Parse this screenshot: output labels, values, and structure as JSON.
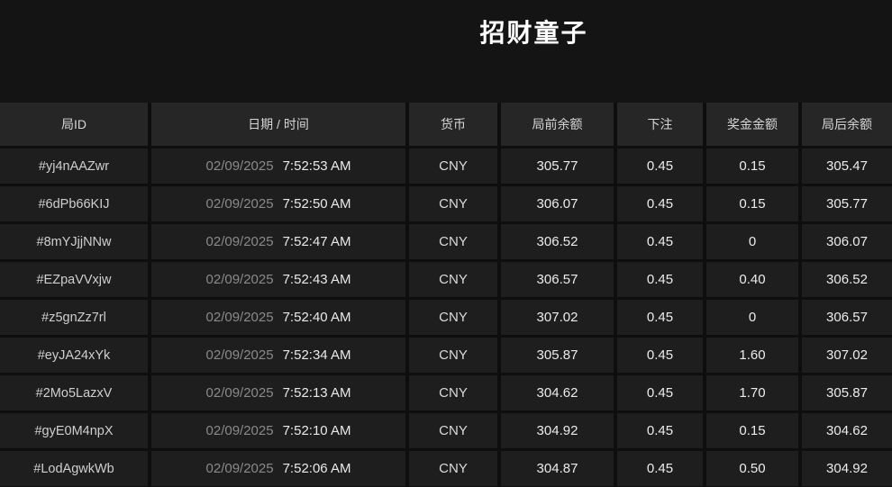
{
  "page": {
    "title": "招财童子"
  },
  "colors": {
    "page_bg": "#141414",
    "gutter_bg": "#0e0e0e",
    "header_cell_bg": "#262626",
    "row_cell_bg": "#1e1e1e",
    "title_text": "#ffffff",
    "date_text": "#8a8a8a",
    "primary_text": "#e9e9e9"
  },
  "table": {
    "columns": [
      {
        "key": "round_id",
        "label": "局ID"
      },
      {
        "key": "datetime",
        "label": "日期 / 时间"
      },
      {
        "key": "currency",
        "label": "货币"
      },
      {
        "key": "balance_before",
        "label": "局前余额"
      },
      {
        "key": "bet",
        "label": "下注"
      },
      {
        "key": "prize",
        "label": "奖金金额"
      },
      {
        "key": "balance_after",
        "label": "局后余额"
      }
    ],
    "rows": [
      {
        "round_id": "#yj4nAAZwr",
        "date": "02/09/2025",
        "time": "7:52:53 AM",
        "currency": "CNY",
        "balance_before": "305.77",
        "bet": "0.45",
        "prize": "0.15",
        "balance_after": "305.47"
      },
      {
        "round_id": "#6dPb66KIJ",
        "date": "02/09/2025",
        "time": "7:52:50 AM",
        "currency": "CNY",
        "balance_before": "306.07",
        "bet": "0.45",
        "prize": "0.15",
        "balance_after": "305.77"
      },
      {
        "round_id": "#8mYJjjNNw",
        "date": "02/09/2025",
        "time": "7:52:47 AM",
        "currency": "CNY",
        "balance_before": "306.52",
        "bet": "0.45",
        "prize": "0",
        "balance_after": "306.07"
      },
      {
        "round_id": "#EZpaVVxjw",
        "date": "02/09/2025",
        "time": "7:52:43 AM",
        "currency": "CNY",
        "balance_before": "306.57",
        "bet": "0.45",
        "prize": "0.40",
        "balance_after": "306.52"
      },
      {
        "round_id": "#z5gnZz7rl",
        "date": "02/09/2025",
        "time": "7:52:40 AM",
        "currency": "CNY",
        "balance_before": "307.02",
        "bet": "0.45",
        "prize": "0",
        "balance_after": "306.57"
      },
      {
        "round_id": "#eyJA24xYk",
        "date": "02/09/2025",
        "time": "7:52:34 AM",
        "currency": "CNY",
        "balance_before": "305.87",
        "bet": "0.45",
        "prize": "1.60",
        "balance_after": "307.02"
      },
      {
        "round_id": "#2Mo5LazxV",
        "date": "02/09/2025",
        "time": "7:52:13 AM",
        "currency": "CNY",
        "balance_before": "304.62",
        "bet": "0.45",
        "prize": "1.70",
        "balance_after": "305.87"
      },
      {
        "round_id": "#gyE0M4npX",
        "date": "02/09/2025",
        "time": "7:52:10 AM",
        "currency": "CNY",
        "balance_before": "304.92",
        "bet": "0.45",
        "prize": "0.15",
        "balance_after": "304.62"
      },
      {
        "round_id": "#LodAgwkWb",
        "date": "02/09/2025",
        "time": "7:52:06 AM",
        "currency": "CNY",
        "balance_before": "304.87",
        "bet": "0.45",
        "prize": "0.50",
        "balance_after": "304.92"
      }
    ]
  }
}
